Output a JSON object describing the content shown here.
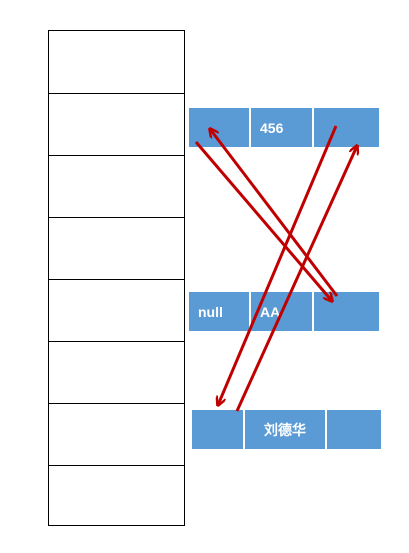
{
  "diagram": {
    "memory": {
      "slot_count": 8
    },
    "nodes": [
      {
        "name": "node-top",
        "cells": [
          "",
          "456",
          ""
        ]
      },
      {
        "name": "node-middle",
        "cells": [
          "null",
          "AA",
          ""
        ]
      },
      {
        "name": "node-bottom",
        "cells": [
          "",
          "刘德华",
          ""
        ]
      }
    ],
    "colors": {
      "node_fill": "#5b9bd5",
      "node_text": "#ffffff",
      "arrow": "#c00000",
      "border": "#000000"
    }
  }
}
